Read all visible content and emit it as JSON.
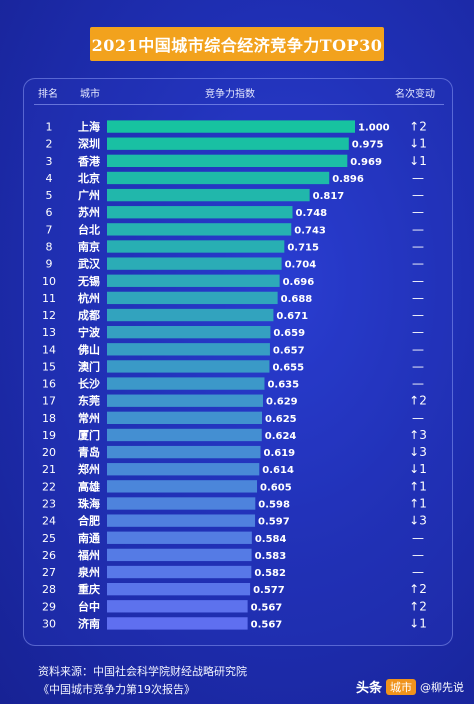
{
  "title": "2021中国城市综合经济竞争力TOP30",
  "headers": {
    "rank": "排名",
    "city": "城市",
    "index": "竞争力指数",
    "change": "名次变动"
  },
  "colors": {
    "bar_top": "#17c3a0",
    "bar_bottom": "#5f6ff0",
    "title_bg": "#f2a21d"
  },
  "chart_data": {
    "type": "bar",
    "orientation": "horizontal",
    "title": "2021中国城市综合经济竞争力TOP30",
    "categories": [
      "上海",
      "深圳",
      "香港",
      "北京",
      "广州",
      "苏州",
      "台北",
      "南京",
      "武汉",
      "无锡",
      "杭州",
      "成都",
      "宁波",
      "佛山",
      "澳门",
      "长沙",
      "东莞",
      "常州",
      "厦门",
      "青岛",
      "郑州",
      "高雄",
      "珠海",
      "合肥",
      "南通",
      "福州",
      "泉州",
      "重庆",
      "台中",
      "济南"
    ],
    "ranks": [
      "1",
      "2",
      "3",
      "4",
      "5",
      "6",
      "7",
      "8",
      "9",
      "10",
      "11",
      "12",
      "13",
      "14",
      "15",
      "16",
      "17",
      "18",
      "19",
      "20",
      "21",
      "22",
      "23",
      "24",
      "25",
      "26",
      "27",
      "28",
      "29",
      "30"
    ],
    "values": [
      1.0,
      0.975,
      0.969,
      0.896,
      0.817,
      0.748,
      0.743,
      0.715,
      0.704,
      0.696,
      0.688,
      0.671,
      0.659,
      0.657,
      0.655,
      0.635,
      0.629,
      0.625,
      0.624,
      0.619,
      0.614,
      0.605,
      0.598,
      0.597,
      0.584,
      0.583,
      0.582,
      0.577,
      0.567,
      0.567
    ],
    "value_labels": [
      "1.000",
      "0.975",
      "0.969",
      "0.896",
      "0.817",
      "0.748",
      "0.743",
      "0.715",
      "0.704",
      "0.696",
      "0.688",
      "0.671",
      "0.659",
      "0.657",
      "0.655",
      "0.635",
      "0.629",
      "0.625",
      "0.624",
      "0.619",
      "0.614",
      "0.605",
      "0.598",
      "0.597",
      "0.584",
      "0.583",
      "0.582",
      "0.577",
      "0.567",
      "0.567"
    ],
    "rank_change": [
      "↑2",
      "↓1",
      "↓1",
      "—",
      "—",
      "—",
      "—",
      "—",
      "—",
      "—",
      "—",
      "—",
      "—",
      "—",
      "—",
      "—",
      "↑2",
      "—",
      "↑3",
      "↓3",
      "↓1",
      "↑1",
      "↑1",
      "↓3",
      "—",
      "—",
      "—",
      "↑2",
      "↑2",
      "↓1"
    ],
    "xlim": [
      0,
      1.0
    ]
  },
  "source": {
    "line1": "资料来源：中国社会科学院财经战略研究院",
    "line2": "《中国城市竞争力第19次报告》"
  },
  "watermark": {
    "brand": "头条",
    "tag": "城市",
    "author": "@柳先说"
  }
}
